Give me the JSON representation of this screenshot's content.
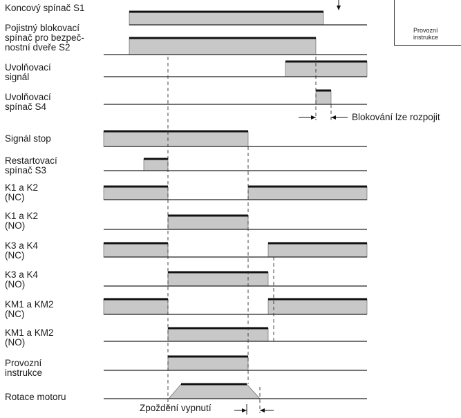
{
  "colors": {
    "pulse_fill": "#c8c8c8",
    "line": "#222222",
    "pulse_top": "#111111"
  },
  "signals": [
    {
      "id": "s1",
      "label": "Koncový spínač S1"
    },
    {
      "id": "s2",
      "label": "Pojistný blokovací\nspínač pro bezpeč-\nnostní dveře S2"
    },
    {
      "id": "release",
      "label": "Uvolňovací\nsignál"
    },
    {
      "id": "s4",
      "label": "Uvolňovací\nspínač S4"
    },
    {
      "id": "stop",
      "label": "Signál stop"
    },
    {
      "id": "s3",
      "label": "Restartovací\nspínač S3"
    },
    {
      "id": "k12nc",
      "label": "K1 a K2\n(NC)"
    },
    {
      "id": "k12no",
      "label": "K1 a K2\n(NO)"
    },
    {
      "id": "k34nc",
      "label": "K3 a K4\n(NC)"
    },
    {
      "id": "k34no",
      "label": "K3 a K4\n(NO)"
    },
    {
      "id": "km12nc",
      "label": "KM1 a KM2\n(NC)"
    },
    {
      "id": "km12no",
      "label": "KM1 a KM2\n(NO)"
    },
    {
      "id": "op",
      "label": "Provozní\ninstrukce"
    },
    {
      "id": "motor",
      "label": "Rotace motoru"
    }
  ],
  "annotations": {
    "blocking": "Blokování lze rozpojit",
    "delay": "Zpoždění vypnutí"
  },
  "inset": {
    "text": "Provozní\ninstrukce"
  }
}
